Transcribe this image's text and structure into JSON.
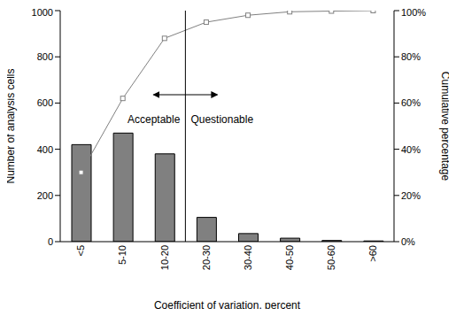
{
  "chart_data": {
    "type": "bar",
    "x_label": "Coefficient of variation, percent",
    "y_label": "Number of analysis cells",
    "y2_label": "Cumulative percentage",
    "categories": [
      "<5",
      "5-10",
      "10-20",
      "20-30",
      "30-40",
      "40-50",
      "50-60",
      ">60"
    ],
    "series": [
      {
        "name": "Number of analysis cells",
        "type": "bar",
        "color": "#808080",
        "values": [
          420,
          470,
          380,
          105,
          35,
          15,
          5,
          3
        ]
      },
      {
        "name": "Cumulative percentage",
        "type": "line",
        "axis": "y2",
        "color": "#808080",
        "marker": "square",
        "values": [
          30,
          62,
          88,
          95,
          98,
          99.5,
          99.8,
          100
        ]
      }
    ],
    "ylim": [
      0,
      1000
    ],
    "yticks": [
      0,
      200,
      400,
      600,
      800,
      1000
    ],
    "y2lim": [
      0,
      100
    ],
    "y2ticks": [
      {
        "value": 0,
        "label": "0%"
      },
      {
        "value": 20,
        "label": "20%"
      },
      {
        "value": 40,
        "label": "40%"
      },
      {
        "value": 60,
        "label": "60%"
      },
      {
        "value": 80,
        "label": "80%"
      },
      {
        "value": 100,
        "label": "100%"
      }
    ],
    "annotations": [
      {
        "text": "Acceptable"
      },
      {
        "text": "Questionable"
      }
    ],
    "grid": false
  }
}
